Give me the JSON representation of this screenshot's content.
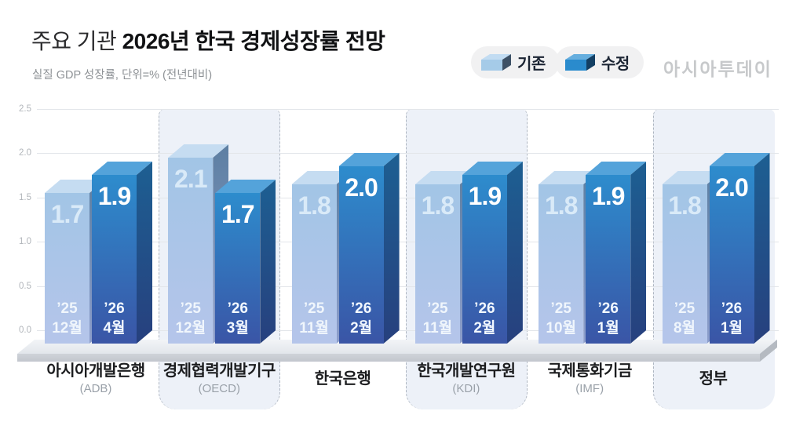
{
  "header": {
    "title_prefix": "주요 기관 ",
    "title_main": "2026년 한국 경제성장률 전망",
    "subtitle": "실질 GDP 성장률, 단위=% (전년대비)",
    "logo": "아시아투데이"
  },
  "legend": {
    "items": [
      {
        "label": "기존",
        "series": "prev"
      },
      {
        "label": "수정",
        "series": "revised"
      }
    ]
  },
  "axis": {
    "ticks": [
      "0.0",
      "0.5",
      "1.0",
      "1.5",
      "2.0",
      "2.5"
    ]
  },
  "colors": {
    "prev": {
      "front_top": "#a2c5e6",
      "front_bottom": "#b5c5ea",
      "top": "#c5dcf1",
      "side_top": "#5d7fa2",
      "side_bottom": "#8d9ecb",
      "value_text": "#d9eaf8",
      "period_text": "#f0f6fc"
    },
    "revised": {
      "front_top": "#2d8ccd",
      "front_bottom": "#3a55a6",
      "top": "#54a3da",
      "side_top": "#1d5f92",
      "side_bottom": "#27407e",
      "value_text": "#ffffff",
      "period_text": "#f2f8ff"
    },
    "legend_prev": {
      "front": "#a5cbe8",
      "top": "#c2dcf2",
      "side": "#3d5166"
    },
    "legend_revised": {
      "front": "#2a8bcd",
      "top": "#66aede",
      "side": "#133f63"
    },
    "panel_bg": "#edf1f8",
    "grid": "#e3e6ea",
    "floor_front": "#c8ccd2"
  },
  "chart_data": {
    "type": "bar",
    "title": "주요 기관 2026년 한국 경제성장률 전망",
    "ylabel": "실질 GDP 성장률, 단위=% (전년대비)",
    "ylim": [
      0,
      2.5
    ],
    "ytick_step": 0.5,
    "grid": true,
    "legend_position": "top-right",
    "series_names": [
      "기존",
      "수정"
    ],
    "groups": [
      {
        "name": "아시아개발은행",
        "sub": "(ADB)",
        "highlight": false,
        "bars": [
          {
            "series": "기존",
            "year": "’25",
            "month": "12월",
            "value": 1.7
          },
          {
            "series": "수정",
            "year": "’26",
            "month": "4월",
            "value": 1.9
          }
        ]
      },
      {
        "name": "경제협력개발기구",
        "sub": "(OECD)",
        "highlight": true,
        "bars": [
          {
            "series": "기존",
            "year": "’25",
            "month": "12월",
            "value": 2.1
          },
          {
            "series": "수정",
            "year": "’26",
            "month": "3월",
            "value": 1.7
          }
        ]
      },
      {
        "name": "한국은행",
        "sub": "",
        "highlight": false,
        "bars": [
          {
            "series": "기존",
            "year": "’25",
            "month": "11월",
            "value": 1.8
          },
          {
            "series": "수정",
            "year": "’26",
            "month": "2월",
            "value": 2.0
          }
        ]
      },
      {
        "name": "한국개발연구원",
        "sub": "(KDI)",
        "highlight": true,
        "bars": [
          {
            "series": "기존",
            "year": "’25",
            "month": "11월",
            "value": 1.8
          },
          {
            "series": "수정",
            "year": "’26",
            "month": "2월",
            "value": 1.9
          }
        ]
      },
      {
        "name": "국제통화기금",
        "sub": "(IMF)",
        "highlight": false,
        "bars": [
          {
            "series": "기존",
            "year": "’25",
            "month": "10월",
            "value": 1.8
          },
          {
            "series": "수정",
            "year": "’26",
            "month": "1월",
            "value": 1.9
          }
        ]
      },
      {
        "name": "정부",
        "sub": "",
        "highlight": true,
        "bars": [
          {
            "series": "기존",
            "year": "’25",
            "month": "8월",
            "value": 1.8
          },
          {
            "series": "수정",
            "year": "’26",
            "month": "1월",
            "value": 2.0
          }
        ]
      }
    ]
  }
}
